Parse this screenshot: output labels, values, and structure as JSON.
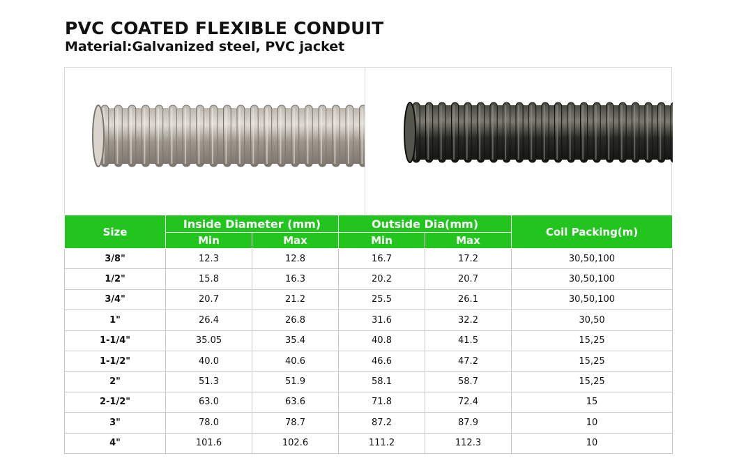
{
  "title": "PVC COATED FLEXIBLE CONDUIT",
  "subtitle": "Material:Galvanized steel, PVC jacket",
  "table": {
    "header": {
      "size": "Size",
      "inside": "Inside Diameter (mm)",
      "outside": "Outside Dia(mm)",
      "coil": "Coil Packing(m)",
      "min": "Min",
      "max": "Max"
    },
    "rows": [
      {
        "size": "3/8\"",
        "in_min": "12.3",
        "in_max": "12.8",
        "out_min": "16.7",
        "out_max": "17.2",
        "coil": "30,50,100"
      },
      {
        "size": "1/2\"",
        "in_min": "15.8",
        "in_max": "16.3",
        "out_min": "20.2",
        "out_max": "20.7",
        "coil": "30,50,100"
      },
      {
        "size": "3/4\"",
        "in_min": "20.7",
        "in_max": "21.2",
        "out_min": "25.5",
        "out_max": "26.1",
        "coil": "30,50,100"
      },
      {
        "size": "1\"",
        "in_min": "26.4",
        "in_max": "26.8",
        "out_min": "31.6",
        "out_max": "32.2",
        "coil": "30,50"
      },
      {
        "size": "1-1/4\"",
        "in_min": "35.05",
        "in_max": "35.4",
        "out_min": "40.8",
        "out_max": "41.5",
        "coil": "15,25"
      },
      {
        "size": "1-1/2\"",
        "in_min": "40.0",
        "in_max": "40.6",
        "out_min": "46.6",
        "out_max": "47.2",
        "coil": "15,25"
      },
      {
        "size": "2\"",
        "in_min": "51.3",
        "in_max": "51.9",
        "out_min": "58.1",
        "out_max": "58.7",
        "coil": "15,25"
      },
      {
        "size": "2-1/2\"",
        "in_min": "63.0",
        "in_max": "63.6",
        "out_min": "71.8",
        "out_max": "72.4",
        "coil": "15"
      },
      {
        "size": "3\"",
        "in_min": "78.0",
        "in_max": "78.7",
        "out_min": "87.2",
        "out_max": "87.9",
        "coil": "10"
      },
      {
        "size": "4\"",
        "in_min": "101.6",
        "in_max": "102.6",
        "out_min": "111.2",
        "out_max": "112.3",
        "coil": "10"
      }
    ]
  },
  "colors": {
    "header_green": "#22c41e",
    "grey_conduit": "#a8a29a",
    "black_conduit": "#2a2a26"
  }
}
